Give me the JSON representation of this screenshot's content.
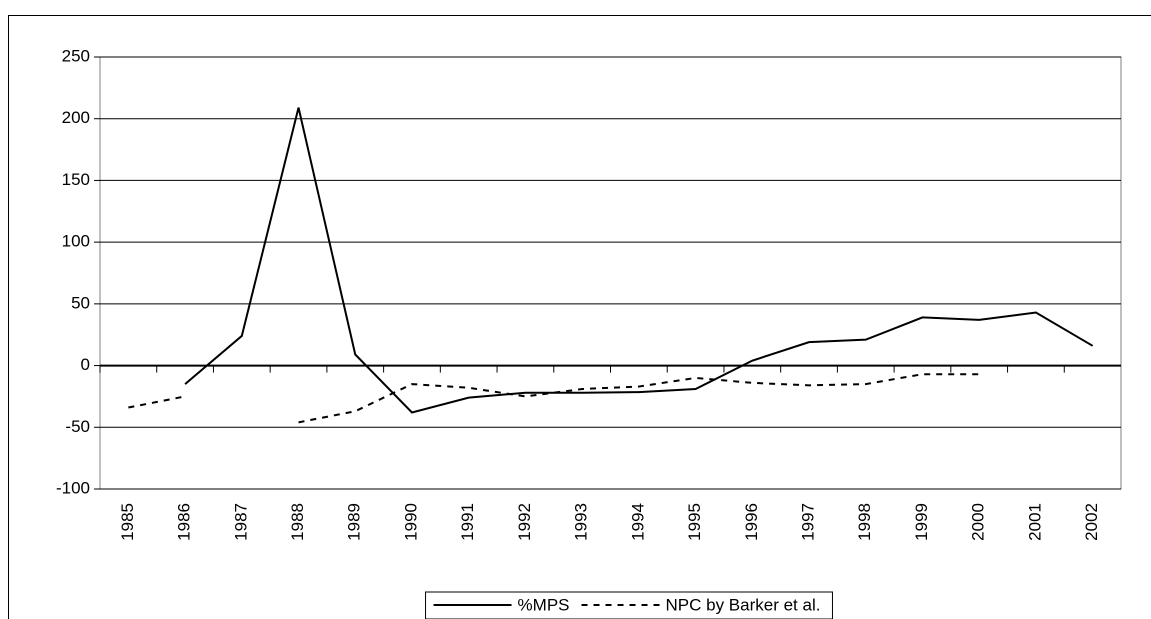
{
  "chart_data": {
    "type": "line",
    "categories": [
      "1985",
      "1986",
      "1987",
      "1988",
      "1989",
      "1990",
      "1991",
      "1992",
      "1993",
      "1994",
      "1995",
      "1996",
      "1997",
      "1998",
      "1999",
      "2000",
      "2001",
      "2002"
    ],
    "series": [
      {
        "name": "%MPS",
        "color": "#000000",
        "line_style": "solid",
        "values": [
          null,
          -15,
          24,
          209,
          9,
          -38,
          -26,
          -22,
          -22,
          -21.5,
          -19,
          4,
          19,
          21,
          39,
          37,
          43,
          16
        ]
      },
      {
        "name": "NPC by Barker et al.",
        "color": "#000000",
        "line_style": "dashed",
        "values": [
          -34,
          -25,
          null,
          -46,
          -37,
          -15,
          -18,
          -25,
          -19,
          -17,
          -10,
          -14,
          -16,
          -15,
          -7,
          -7,
          null,
          null
        ]
      }
    ],
    "ylim": [
      -100,
      250
    ],
    "yticks": [
      -100,
      -50,
      0,
      50,
      100,
      150,
      200,
      250
    ],
    "grid": true,
    "legend": "bottom"
  }
}
